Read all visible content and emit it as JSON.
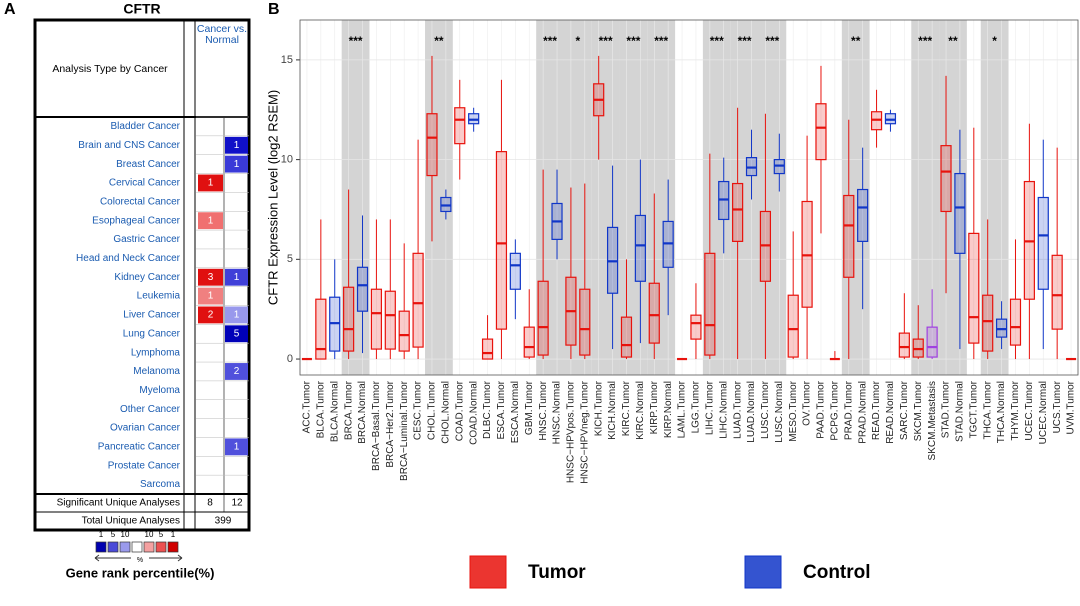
{
  "panel_a": {
    "letter": "A",
    "title": "CFTR",
    "row_header": "Analysis Type by Cancer",
    "column_header": "Cancer vs. Normal",
    "rows": [
      {
        "label": "Bladder Cancer",
        "up": null,
        "down": null
      },
      {
        "label": "Brain and CNS Cancer",
        "up": null,
        "down": {
          "value": 1,
          "color": "#1010c8"
        }
      },
      {
        "label": "Breast Cancer",
        "up": null,
        "down": {
          "value": 1,
          "color": "#3a3ad8"
        }
      },
      {
        "label": "Cervical Cancer",
        "up": {
          "value": 1,
          "color": "#e01010"
        },
        "down": null
      },
      {
        "label": "Colorectal Cancer",
        "up": null,
        "down": null
      },
      {
        "label": "Esophageal Cancer",
        "up": {
          "value": 1,
          "color": "#f07070"
        },
        "down": null
      },
      {
        "label": "Gastric Cancer",
        "up": null,
        "down": null
      },
      {
        "label": "Head and Neck Cancer",
        "up": null,
        "down": null
      },
      {
        "label": "Kidney Cancer",
        "up": {
          "value": 3,
          "color": "#e01010"
        },
        "down": {
          "value": 1,
          "color": "#4040d8"
        }
      },
      {
        "label": "Leukemia",
        "up": {
          "value": 1,
          "color": "#f08080"
        },
        "down": null
      },
      {
        "label": "Liver Cancer",
        "up": {
          "value": 2,
          "color": "#e01010"
        },
        "down": {
          "value": 1,
          "color": "#9898ec"
        }
      },
      {
        "label": "Lung Cancer",
        "up": null,
        "down": {
          "value": 5,
          "color": "#0000b8"
        }
      },
      {
        "label": "Lymphoma",
        "up": null,
        "down": null
      },
      {
        "label": "Melanoma",
        "up": null,
        "down": {
          "value": 2,
          "color": "#5050dc"
        }
      },
      {
        "label": "Myeloma",
        "up": null,
        "down": null
      },
      {
        "label": "Other Cancer",
        "up": null,
        "down": null
      },
      {
        "label": "Ovarian Cancer",
        "up": null,
        "down": null
      },
      {
        "label": "Pancreatic Cancer",
        "up": null,
        "down": {
          "value": 1,
          "color": "#5050dc"
        }
      },
      {
        "label": "Prostate Cancer",
        "up": null,
        "down": null
      },
      {
        "label": "Sarcoma",
        "up": null,
        "down": null
      }
    ],
    "significant_label": "Significant Unique Analyses",
    "significant_up": 8,
    "significant_down": 12,
    "total_label": "Total Unique Analyses",
    "total": 399,
    "scale": [
      {
        "label": "1",
        "color": "#0000b0"
      },
      {
        "label": "5",
        "color": "#4a4ad8"
      },
      {
        "label": "10",
        "color": "#9a9aec"
      },
      {
        "label": null,
        "color": "#ffffff"
      },
      {
        "label": "10",
        "color": "#f4a0a0"
      },
      {
        "label": "5",
        "color": "#ec5050"
      },
      {
        "label": "1",
        "color": "#d00000"
      }
    ],
    "scale_unit": "%",
    "scale_title": "Gene rank percentile(%)"
  },
  "chart_data": {
    "type": "box",
    "letter": "B",
    "y_label": "CFTR Expression Level (log2 RSEM)",
    "categories": [
      "ACC.Tumor",
      "BLCA.Tumor",
      "BLCA.Normal",
      "BRCA.Tumor",
      "BRCA.Normal",
      "BRCA−Basal.Tumor",
      "BRCA−Her2.Tumor",
      "BRCA−Luminal.Tumor",
      "CESC.Tumor",
      "CHOL.Tumor",
      "CHOL.Normal",
      "COAD.Tumor",
      "COAD.Normal",
      "DLBC.Tumor",
      "ESCA.Tumor",
      "ESCA.Normal",
      "GBM.Tumor",
      "HNSC.Tumor",
      "HNSC.Normal",
      "HNSC−HPVpos.Tumor",
      "HNSC−HPVneg.Tumor",
      "KICH.Tumor",
      "KICH.Normal",
      "KIRC.Tumor",
      "KIRC.Normal",
      "KIRP.Tumor",
      "KIRP.Normal",
      "LAML.Tumor",
      "LGG.Tumor",
      "LIHC.Tumor",
      "LIHC.Normal",
      "LUAD.Tumor",
      "LUAD.Normal",
      "LUSC.Tumor",
      "LUSC.Normal",
      "MESO.Tumor",
      "OV.Tumor",
      "PAAD.Tumor",
      "PCPG.Tumor",
      "PRAD.Tumor",
      "PRAD.Normal",
      "READ.Tumor",
      "READ.Normal",
      "SARC.Tumor",
      "SKCM.Tumor",
      "SKCM.Metastasis",
      "STAD.Tumor",
      "STAD.Normal",
      "TGCT.Tumor",
      "THCA.Tumor",
      "THCA.Normal",
      "THYM.Tumor",
      "UCEC.Tumor",
      "UCEC.Normal",
      "UCS.Tumor",
      "UVM.Tumor"
    ],
    "median": [
      0,
      0.5,
      1.8,
      1.5,
      3.7,
      2.3,
      2.2,
      1.2,
      2.8,
      11.1,
      7.7,
      12.0,
      12.0,
      0.3,
      5.8,
      4.7,
      0.6,
      1.6,
      6.9,
      2.4,
      1.5,
      13.0,
      4.9,
      0.7,
      5.7,
      2.2,
      5.8,
      0,
      1.8,
      1.7,
      8.0,
      7.5,
      9.6,
      5.7,
      9.7,
      1.5,
      5.2,
      11.6,
      0,
      6.7,
      7.6,
      12.0,
      12.0,
      0.6,
      0.5,
      0.6,
      9.4,
      7.6,
      2.1,
      1.9,
      1.5,
      1.6,
      5.9,
      6.2,
      3.2,
      0
    ],
    "q1": [
      0,
      0,
      0.4,
      0.4,
      2.4,
      0.5,
      0.5,
      0.4,
      0.6,
      9.2,
      7.4,
      10.8,
      11.8,
      0,
      1.5,
      3.5,
      0.1,
      0.2,
      6.0,
      0.7,
      0.2,
      12.2,
      3.3,
      0.1,
      3.9,
      0.8,
      4.6,
      0,
      1.0,
      0.2,
      7.0,
      5.9,
      9.2,
      3.9,
      9.3,
      0.1,
      2.6,
      10.0,
      0,
      4.1,
      5.9,
      11.5,
      11.8,
      0.1,
      0.1,
      0.1,
      7.4,
      5.3,
      0.8,
      0.4,
      1.1,
      0.7,
      3.0,
      3.5,
      1.5,
      0
    ],
    "q3": [
      0,
      3,
      3.1,
      3.6,
      4.6,
      3.5,
      3.4,
      2.4,
      5.3,
      12.3,
      8.1,
      12.6,
      12.3,
      1.0,
      10.4,
      5.3,
      1.6,
      3.9,
      7.8,
      4.1,
      3.5,
      13.8,
      6.6,
      2.1,
      7.2,
      3.8,
      6.9,
      0,
      2.2,
      5.3,
      8.9,
      8.8,
      10.1,
      7.4,
      10.0,
      3.2,
      7.9,
      12.8,
      0,
      8.2,
      8.5,
      12.4,
      12.3,
      1.3,
      1.0,
      1.6,
      10.7,
      9.3,
      6.3,
      3.2,
      2.0,
      3.0,
      8.9,
      8.1,
      5.2,
      0
    ],
    "low": [
      0,
      0,
      0,
      0,
      0.3,
      0,
      0,
      0,
      0,
      5.9,
      7,
      9,
      11.4,
      0,
      0,
      2,
      0,
      0,
      5,
      0,
      0,
      10,
      0.5,
      0,
      0.8,
      0,
      2.2,
      0,
      0,
      0,
      5.3,
      0,
      8,
      0,
      8.4,
      0,
      0,
      6.3,
      0,
      0,
      2.5,
      10.6,
      11.4,
      0,
      0,
      0,
      3.3,
      0.5,
      0,
      0,
      0.5,
      0,
      0,
      0.5,
      0,
      0
    ],
    "high": [
      0,
      7,
      5,
      8.5,
      7.2,
      7,
      7,
      5.8,
      11,
      15.2,
      8.5,
      14,
      12.6,
      2.2,
      14,
      6,
      3.5,
      9.5,
      9.5,
      8.6,
      8.8,
      15.2,
      9.7,
      5,
      10,
      8.3,
      9,
      0,
      3.8,
      10.3,
      10.1,
      12.6,
      11.5,
      12.3,
      11.3,
      6.4,
      11.2,
      14.7,
      0.4,
      12,
      10.6,
      13.5,
      12.5,
      3.3,
      2.7,
      3.5,
      14.2,
      11.5,
      11.6,
      7,
      2.9,
      6,
      11.8,
      11,
      10.6,
      0
    ],
    "box_colors": [
      "#e8120c",
      "#e8120c",
      "#1036c8",
      "#e8120c",
      "#1036c8",
      "#e8120c",
      "#e8120c",
      "#e8120c",
      "#e8120c",
      "#e8120c",
      "#1036c8",
      "#e8120c",
      "#1036c8",
      "#e8120c",
      "#e8120c",
      "#1036c8",
      "#e8120c",
      "#e8120c",
      "#1036c8",
      "#e8120c",
      "#e8120c",
      "#e8120c",
      "#1036c8",
      "#e8120c",
      "#1036c8",
      "#e8120c",
      "#1036c8",
      "#e8120c",
      "#e8120c",
      "#e8120c",
      "#1036c8",
      "#e8120c",
      "#1036c8",
      "#e8120c",
      "#1036c8",
      "#e8120c",
      "#e8120c",
      "#e8120c",
      "#e8120c",
      "#e8120c",
      "#1036c8",
      "#e8120c",
      "#1036c8",
      "#e8120c",
      "#e8120c",
      "#a040e0",
      "#e8120c",
      "#1036c8",
      "#e8120c",
      "#e8120c",
      "#1036c8",
      "#e8120c",
      "#e8120c",
      "#1036c8",
      "#e8120c",
      "#e8120c"
    ],
    "significance": [
      null,
      null,
      null,
      "***",
      null,
      null,
      null,
      null,
      null,
      "**",
      null,
      null,
      null,
      null,
      null,
      null,
      null,
      "***",
      null,
      "*",
      null,
      "***",
      null,
      "***",
      null,
      "***",
      null,
      null,
      null,
      "***",
      null,
      "***",
      null,
      "***",
      null,
      null,
      null,
      null,
      null,
      "**",
      null,
      null,
      null,
      null,
      "***",
      null,
      "**",
      null,
      null,
      "*",
      null,
      null,
      null,
      null,
      null,
      null
    ],
    "ylim": [
      -0.8,
      17
    ],
    "yticks": [
      0,
      5,
      10,
      15
    ],
    "grid": true,
    "legend": [
      {
        "name": "Tumor",
        "color": "#e8120c"
      },
      {
        "name": "Control",
        "color": "#1036c8"
      }
    ]
  }
}
